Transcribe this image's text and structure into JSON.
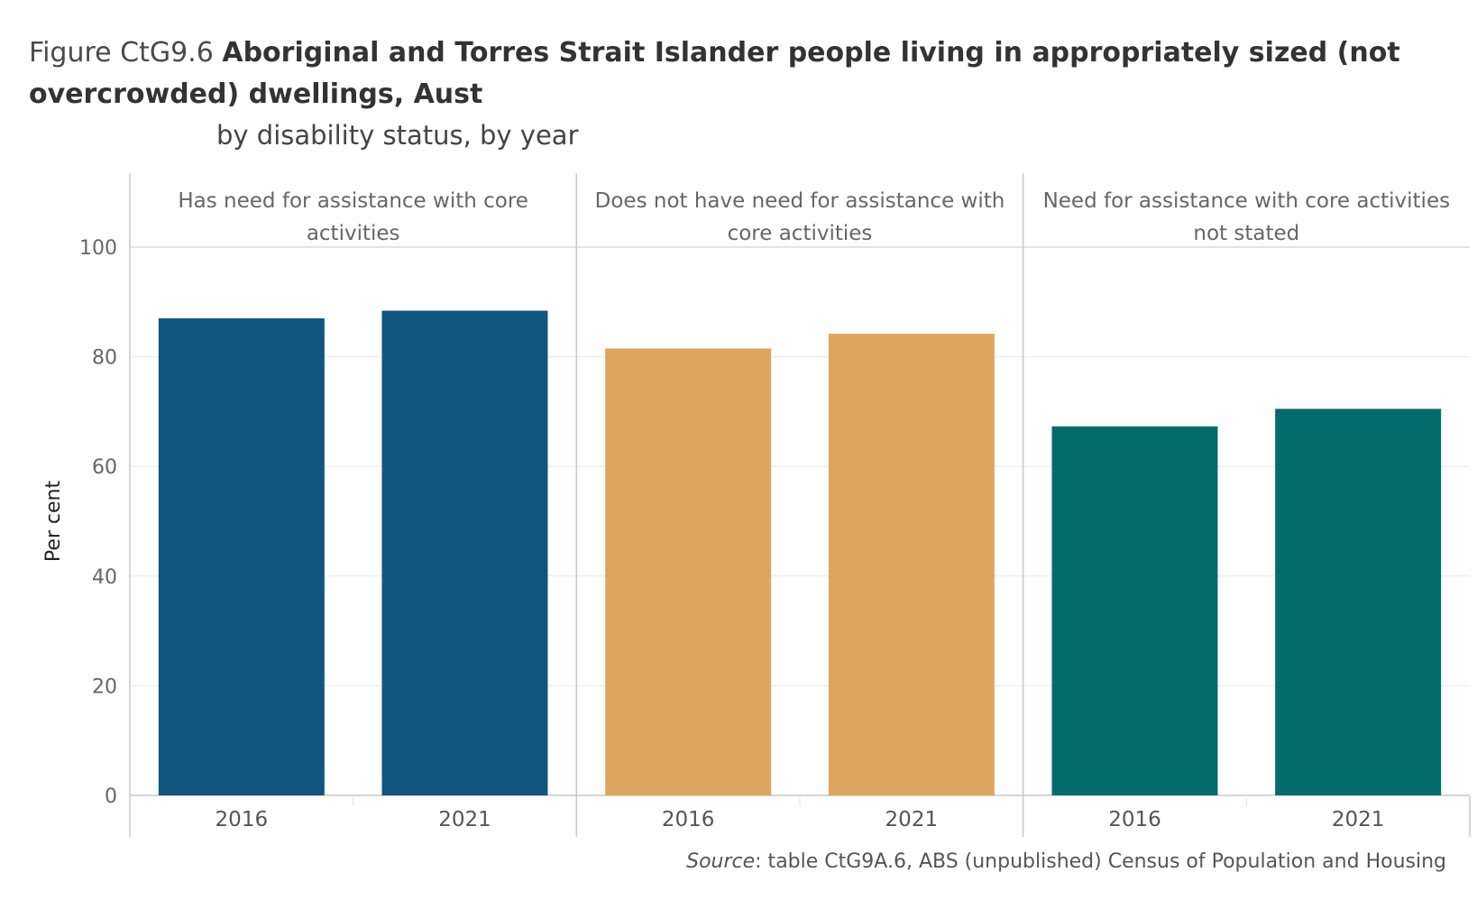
{
  "title": {
    "prefix": "Figure CtG9.6",
    "main_line1": "Aboriginal and Torres Strait Islander people living in appropriately sized (not",
    "main_line2": "overcrowded) dwellings, Aust",
    "subtitle": "by disability status, by year"
  },
  "source": {
    "label": "Source",
    "text": ": table CtG9A.6, ABS (unpublished) Census of Population and Housing"
  },
  "colors": {
    "panel_1": "#10567f",
    "panel_2": "#dfa55f",
    "panel_3": "#046b6c",
    "grid": "#ececec",
    "divider": "#c8c8c8"
  },
  "chart_data": {
    "type": "bar",
    "ylabel": "Per cent",
    "ylim": [
      0,
      100
    ],
    "yticks": [
      0,
      20,
      40,
      60,
      80,
      100
    ],
    "categories": [
      "2016",
      "2021"
    ],
    "panels": [
      {
        "name": [
          "Has need for assistance with core",
          "activities"
        ],
        "values": [
          87.0,
          88.4
        ]
      },
      {
        "name": [
          "Does not have need for assistance with",
          "core activities"
        ],
        "values": [
          81.5,
          84.2
        ]
      },
      {
        "name": [
          "Need for assistance with core activities",
          "not stated"
        ],
        "values": [
          67.3,
          70.5
        ]
      }
    ],
    "grid": true
  }
}
